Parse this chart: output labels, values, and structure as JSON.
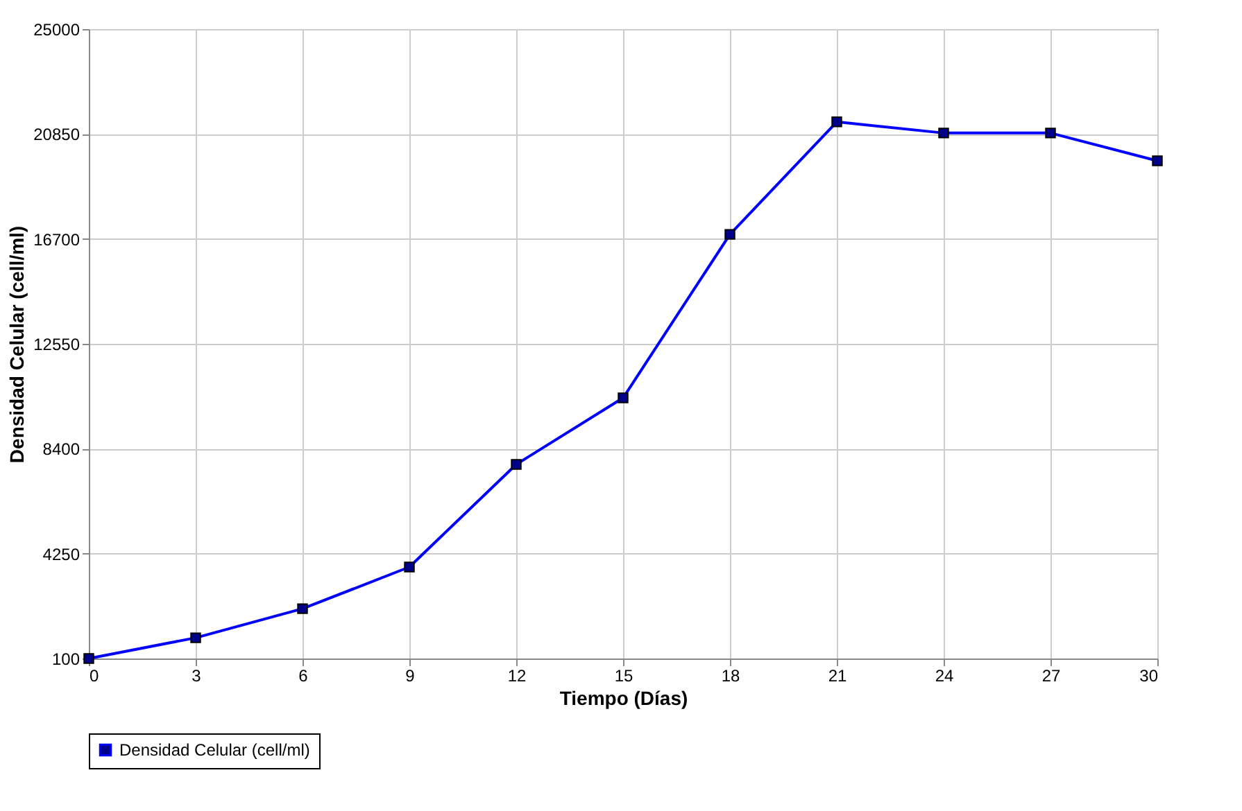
{
  "chart_data": {
    "type": "line",
    "xlabel": "Tiempo (Días)",
    "ylabel": "Densidad Celular (cell/ml)",
    "x": [
      0,
      3,
      6,
      9,
      12,
      15,
      18,
      21,
      24,
      27,
      30
    ],
    "series": [
      {
        "name": "Densidad Celular (cell/ml)",
        "color": "#0000ff",
        "values": [
          100,
          920,
          2070,
          3720,
          7780,
          10410,
          16880,
          21330,
          20890,
          20890,
          19790
        ]
      }
    ],
    "xlim": [
      0,
      30
    ],
    "xticks": [
      0,
      3,
      6,
      9,
      12,
      15,
      18,
      21,
      24,
      27,
      30
    ],
    "ylim": [
      100,
      25000
    ],
    "yticks": [
      100,
      4250,
      8400,
      12550,
      16700,
      20850,
      25000
    ],
    "grid": true,
    "legend": "bottom",
    "marker": "square",
    "line_style": "solid"
  }
}
